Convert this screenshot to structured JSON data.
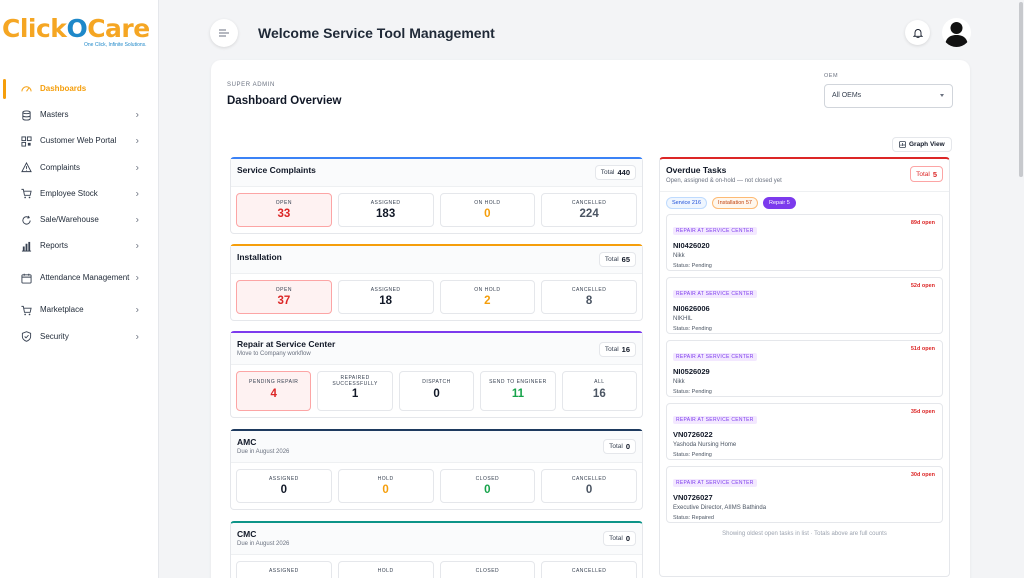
{
  "logo": {
    "part1": "Click",
    "part2": "O",
    "part3": "Care",
    "tagline": "One Click, Infinite Solutions."
  },
  "sidebar": {
    "items": [
      {
        "label": "Dashboards",
        "icon": "dashboard-icon",
        "active": true
      },
      {
        "label": "Masters",
        "icon": "database-icon"
      },
      {
        "label": "Customer Web Portal",
        "icon": "qr-grid-icon"
      },
      {
        "label": "Complaints",
        "icon": "warning-icon"
      },
      {
        "label": "Employee Stock",
        "icon": "cart-icon"
      },
      {
        "label": "Sale/Warehouse",
        "icon": "refresh-icon"
      },
      {
        "label": "Reports",
        "icon": "bar-chart-icon"
      },
      {
        "label": "Attendance Management",
        "icon": "calendar-icon"
      },
      {
        "label": "Marketplace",
        "icon": "cart-icon"
      },
      {
        "label": "Security",
        "icon": "shield-icon"
      }
    ]
  },
  "header": {
    "title": "Welcome Service Tool Management"
  },
  "main": {
    "eyebrow": "SUPER ADMIN",
    "title": "Dashboard Overview",
    "oem_label": "OEM",
    "oem_value": "All OEMs",
    "graph_view": "Graph View"
  },
  "sections": {
    "service": {
      "title": "Service Complaints",
      "total_label": "Total",
      "total": "440",
      "stats": [
        {
          "label": "OPEN",
          "value": "33"
        },
        {
          "label": "ASSIGNED",
          "value": "183"
        },
        {
          "label": "ON HOLD",
          "value": "0"
        },
        {
          "label": "CANCELLED",
          "value": "224"
        }
      ]
    },
    "installation": {
      "title": "Installation",
      "total_label": "Total",
      "total": "65",
      "stats": [
        {
          "label": "OPEN",
          "value": "37"
        },
        {
          "label": "ASSIGNED",
          "value": "18"
        },
        {
          "label": "ON HOLD",
          "value": "2"
        },
        {
          "label": "CANCELLED",
          "value": "8"
        }
      ]
    },
    "repair": {
      "title": "Repair at Service Center",
      "subtitle": "Move to Company workflow",
      "total_label": "Total",
      "total": "16",
      "stats": [
        {
          "label": "PENDING REPAIR",
          "value": "4"
        },
        {
          "label": "REPAIRED SUCCESSFULLY",
          "value": "1"
        },
        {
          "label": "DISPATCH",
          "value": "0"
        },
        {
          "label": "SEND TO ENGINEER",
          "value": "11"
        },
        {
          "label": "ALL",
          "value": "16"
        }
      ]
    },
    "amc": {
      "title": "AMC",
      "subtitle": "Due in August 2026",
      "total_label": "Total",
      "total": "0",
      "stats": [
        {
          "label": "ASSIGNED",
          "value": "0"
        },
        {
          "label": "HOLD",
          "value": "0"
        },
        {
          "label": "CLOSED",
          "value": "0"
        },
        {
          "label": "CANCELLED",
          "value": "0"
        }
      ]
    },
    "cmc": {
      "title": "CMC",
      "subtitle": "Due in August 2026",
      "total_label": "Total",
      "total": "0",
      "stats": [
        {
          "label": "ASSIGNED"
        },
        {
          "label": "HOLD"
        },
        {
          "label": "CLOSED"
        },
        {
          "label": "CANCELLED"
        }
      ]
    }
  },
  "overdue": {
    "title": "Overdue Tasks",
    "subtitle": "Open, assigned & on-hold — not closed yet",
    "total_label": "Total",
    "total": "5",
    "pills": [
      {
        "label": "Service 216"
      },
      {
        "label": "Installation 57"
      },
      {
        "label": "Repair 5"
      }
    ],
    "tasks": [
      {
        "badge": "REPAIR AT SERVICE CENTER",
        "days": "89d open",
        "id": "NI0426020",
        "name": "Nikk",
        "status": "Status: Pending"
      },
      {
        "badge": "REPAIR AT SERVICE CENTER",
        "days": "52d open",
        "id": "NI0626006",
        "name": "NIKHIL",
        "status": "Status: Pending"
      },
      {
        "badge": "REPAIR AT SERVICE CENTER",
        "days": "51d open",
        "id": "NI0526029",
        "name": "Nikk",
        "status": "Status: Pending"
      },
      {
        "badge": "REPAIR AT SERVICE CENTER",
        "days": "35d open",
        "id": "VN0726022",
        "name": "Yashoda Nursing Home",
        "status": "Status: Pending"
      },
      {
        "badge": "REPAIR AT SERVICE CENTER",
        "days": "30d open",
        "id": "VN0726027",
        "name": "Executive Director, AIIMS Bathinda",
        "status": "Status: Repaired"
      }
    ],
    "footer": "Showing oldest open tasks in list · Totals above are full counts"
  },
  "colors": {
    "accent": "#f59e0b",
    "service": "#3b82f6",
    "installation": "#f59e0b",
    "repair": "#7c3aed",
    "amc": "#1e3a5f",
    "cmc": "#0d9488",
    "danger": "#dc2626",
    "success": "#16a34a",
    "neutral": "#4b5563"
  }
}
